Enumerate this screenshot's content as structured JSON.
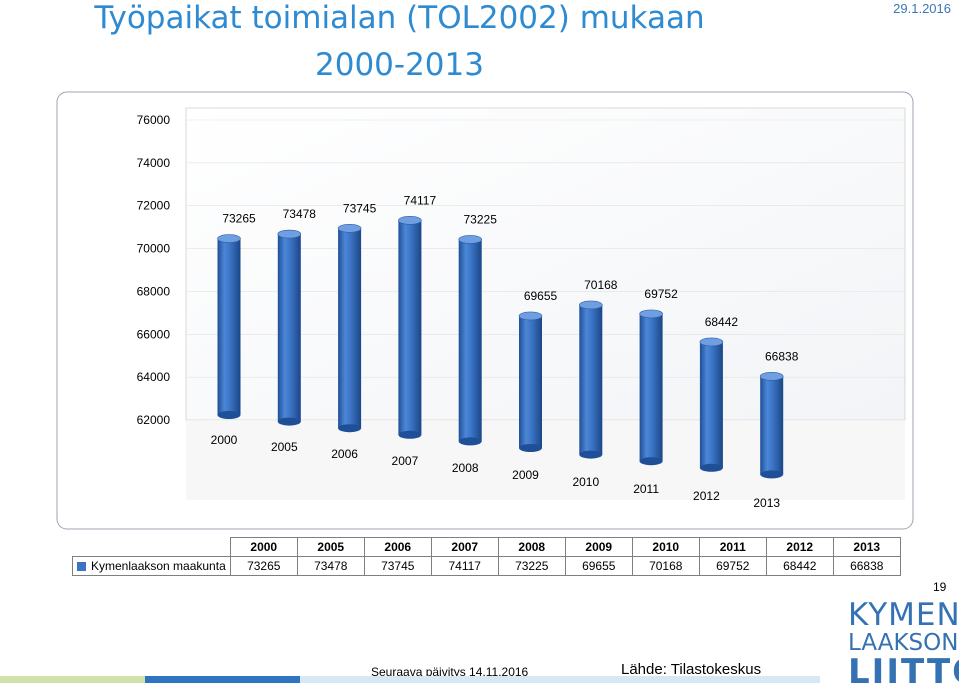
{
  "header": {
    "title_line1": "Työpaikat toimialan (TOL2002) mukaan",
    "title_line2": "2000-2013",
    "date": "29.1.2016"
  },
  "chart_data": {
    "type": "bar",
    "title": "Työpaikat toimialan (TOL2002) mukaan 2000-2013",
    "categories": [
      "2000",
      "2005",
      "2006",
      "2007",
      "2008",
      "2009",
      "2010",
      "2011",
      "2012",
      "2013"
    ],
    "series": [
      {
        "name": "Kymenlaakson maakunta",
        "values": [
          73265,
          73478,
          73745,
          74117,
          73225,
          69655,
          70168,
          69752,
          68442,
          66838
        ],
        "value_labels": [
          "73265",
          "73478",
          "73745",
          "74117",
          "73225",
          "69655",
          "70168",
          "69752",
          "68442",
          "66838"
        ]
      }
    ],
    "ylim": [
      62000,
      76000
    ],
    "yticks": [
      "62000",
      "64000",
      "66000",
      "68000",
      "70000",
      "72000",
      "74000",
      "76000"
    ],
    "xlabel": "",
    "ylabel": "",
    "legend": "table-bottom",
    "style": "3d-cylinder",
    "bar_color": "#3b74c4"
  },
  "table": {
    "series_label": "Kymenlaakson maakunta"
  },
  "footer": {
    "page_number": "19",
    "next_update": "Seuraava päivitys 14.11.2016",
    "source": "Lähde: Tilastokeskus"
  },
  "logo": {
    "line1": "KYMEN",
    "line2": "LAAKSON",
    "line3": "LIITTO"
  }
}
